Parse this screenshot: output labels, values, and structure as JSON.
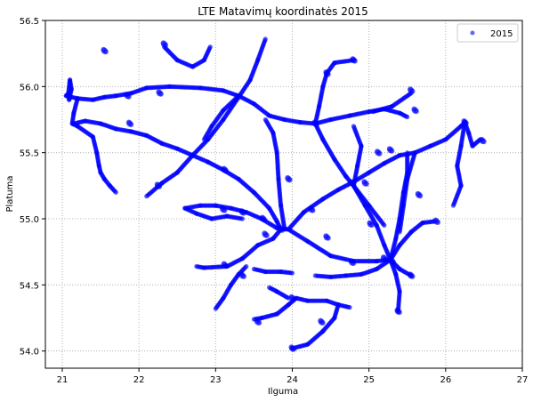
{
  "chart_data": {
    "type": "scatter",
    "title": "LTE Matavimų koordinatės 2015",
    "xlabel": "Ilguma",
    "ylabel": "Platuma",
    "xlim": [
      20.78,
      27.0
    ],
    "ylim": [
      53.87,
      56.5
    ],
    "xticks": [
      "21",
      "22",
      "23",
      "24",
      "25",
      "26",
      "27"
    ],
    "yticks": [
      "54.0",
      "54.5",
      "55.0",
      "55.5",
      "56.0",
      "56.5"
    ],
    "grid": true,
    "legend": "top-right",
    "series": [
      {
        "name": "2015",
        "color": "#0000ff",
        "paths": [
          [
            [
              21.05,
              55.93
            ],
            [
              21.08,
              55.95
            ],
            [
              21.1,
              56.05
            ],
            [
              21.12,
              55.98
            ],
            [
              21.09,
              55.9
            ],
            [
              21.08,
              55.93
            ]
          ],
          [
            [
              21.05,
              55.93
            ],
            [
              21.2,
              55.91
            ],
            [
              21.4,
              55.9
            ],
            [
              21.55,
              55.92
            ],
            [
              21.7,
              55.93
            ],
            [
              21.9,
              55.95
            ],
            [
              22.1,
              55.99
            ],
            [
              22.4,
              56.0
            ],
            [
              22.8,
              55.99
            ],
            [
              23.1,
              55.97
            ],
            [
              23.3,
              55.93
            ],
            [
              23.5,
              55.87
            ]
          ],
          [
            [
              21.2,
              55.91
            ],
            [
              21.15,
              55.8
            ],
            [
              21.13,
              55.72
            ],
            [
              21.2,
              55.7
            ]
          ],
          [
            [
              21.15,
              55.72
            ],
            [
              21.3,
              55.74
            ],
            [
              21.5,
              55.72
            ],
            [
              21.7,
              55.68
            ],
            [
              21.9,
              55.66
            ],
            [
              22.1,
              55.63
            ],
            [
              22.3,
              55.57
            ],
            [
              22.5,
              55.53
            ],
            [
              22.7,
              55.48
            ],
            [
              22.9,
              55.43
            ],
            [
              23.1,
              55.37
            ],
            [
              23.3,
              55.3
            ],
            [
              23.5,
              55.2
            ],
            [
              23.7,
              55.08
            ],
            [
              23.8,
              54.98
            ],
            [
              23.85,
              54.92
            ]
          ],
          [
            [
              21.2,
              55.7
            ],
            [
              21.4,
              55.62
            ],
            [
              21.45,
              55.5
            ],
            [
              21.48,
              55.4
            ],
            [
              21.5,
              55.35
            ]
          ],
          [
            [
              21.5,
              55.35
            ],
            [
              21.55,
              55.3
            ],
            [
              21.62,
              55.25
            ],
            [
              21.7,
              55.2
            ]
          ],
          [
            [
              22.1,
              55.17
            ],
            [
              22.3,
              55.27
            ],
            [
              22.5,
              55.35
            ],
            [
              22.7,
              55.48
            ],
            [
              22.9,
              55.6
            ],
            [
              23.1,
              55.75
            ],
            [
              23.3,
              55.92
            ],
            [
              23.45,
              56.05
            ],
            [
              23.55,
              56.2
            ],
            [
              23.65,
              56.36
            ]
          ],
          [
            [
              23.3,
              55.93
            ],
            [
              23.1,
              55.82
            ],
            [
              22.95,
              55.7
            ],
            [
              22.85,
              55.6
            ]
          ],
          [
            [
              22.33,
              56.3
            ],
            [
              22.5,
              56.2
            ],
            [
              22.7,
              56.15
            ],
            [
              22.85,
              56.2
            ],
            [
              22.93,
              56.3
            ]
          ],
          [
            [
              22.6,
              55.08
            ],
            [
              22.8,
              55.1
            ],
            [
              23.0,
              55.1
            ],
            [
              23.2,
              55.08
            ],
            [
              23.4,
              55.05
            ],
            [
              23.6,
              55.0
            ],
            [
              23.8,
              54.93
            ],
            [
              23.95,
              54.92
            ]
          ],
          [
            [
              22.6,
              55.08
            ],
            [
              22.75,
              55.04
            ],
            [
              22.95,
              55.0
            ],
            [
              23.15,
              55.02
            ],
            [
              23.35,
              55.0
            ]
          ],
          [
            [
              23.85,
              54.92
            ],
            [
              23.75,
              54.85
            ],
            [
              23.55,
              54.8
            ],
            [
              23.35,
              54.7
            ],
            [
              23.15,
              54.64
            ],
            [
              22.85,
              54.63
            ],
            [
              22.75,
              54.64
            ]
          ],
          [
            [
              23.4,
              54.64
            ],
            [
              23.3,
              54.58
            ],
            [
              23.2,
              54.5
            ],
            [
              23.1,
              54.4
            ],
            [
              23.0,
              54.32
            ]
          ],
          [
            [
              23.5,
              54.62
            ],
            [
              23.65,
              54.6
            ],
            [
              23.85,
              54.6
            ],
            [
              24.0,
              54.59
            ]
          ],
          [
            [
              23.95,
              54.92
            ],
            [
              24.2,
              54.83
            ],
            [
              24.5,
              54.72
            ],
            [
              24.8,
              54.68
            ],
            [
              25.1,
              54.68
            ],
            [
              25.28,
              54.69
            ]
          ],
          [
            [
              23.95,
              54.92
            ],
            [
              24.15,
              55.05
            ],
            [
              24.4,
              55.15
            ],
            [
              24.6,
              55.22
            ],
            [
              24.8,
              55.28
            ],
            [
              25.0,
              55.35
            ],
            [
              25.2,
              55.42
            ],
            [
              25.4,
              55.48
            ],
            [
              25.6,
              55.5
            ],
            [
              25.8,
              55.55
            ],
            [
              26.0,
              55.6
            ],
            [
              26.2,
              55.7
            ],
            [
              26.25,
              55.73
            ]
          ],
          [
            [
              23.9,
              54.92
            ],
            [
              23.85,
              55.1
            ],
            [
              23.82,
              55.3
            ],
            [
              23.8,
              55.5
            ],
            [
              23.75,
              55.65
            ],
            [
              23.65,
              55.75
            ]
          ],
          [
            [
              23.5,
              55.87
            ],
            [
              23.7,
              55.78
            ],
            [
              23.9,
              55.75
            ],
            [
              24.1,
              55.73
            ],
            [
              24.3,
              55.72
            ],
            [
              24.5,
              55.75
            ],
            [
              24.75,
              55.78
            ],
            [
              25.0,
              55.81
            ],
            [
              25.2,
              55.83
            ],
            [
              25.4,
              55.8
            ],
            [
              25.5,
              55.77
            ]
          ],
          [
            [
              24.3,
              55.72
            ],
            [
              24.35,
              55.85
            ],
            [
              24.4,
              56.0
            ],
            [
              24.45,
              56.1
            ],
            [
              24.55,
              56.18
            ],
            [
              24.8,
              56.2
            ]
          ],
          [
            [
              24.3,
              55.72
            ],
            [
              24.4,
              55.6
            ],
            [
              24.55,
              55.45
            ],
            [
              24.7,
              55.32
            ],
            [
              24.8,
              55.25
            ],
            [
              24.95,
              55.1
            ],
            [
              25.1,
              54.95
            ],
            [
              25.2,
              54.8
            ],
            [
              25.28,
              54.69
            ]
          ],
          [
            [
              25.05,
              55.81
            ],
            [
              25.3,
              55.85
            ],
            [
              25.55,
              55.95
            ]
          ],
          [
            [
              24.8,
              55.25
            ],
            [
              24.85,
              55.4
            ],
            [
              24.9,
              55.55
            ],
            [
              24.8,
              55.7
            ]
          ],
          [
            [
              25.28,
              54.69
            ],
            [
              25.35,
              54.85
            ],
            [
              25.4,
              55.0
            ],
            [
              25.45,
              55.2
            ],
            [
              25.5,
              55.35
            ],
            [
              25.5,
              55.5
            ]
          ],
          [
            [
              25.28,
              54.69
            ],
            [
              25.4,
              54.8
            ],
            [
              25.55,
              54.9
            ],
            [
              25.7,
              54.97
            ],
            [
              25.85,
              54.98
            ]
          ],
          [
            [
              25.28,
              54.69
            ],
            [
              25.35,
              54.58
            ],
            [
              25.4,
              54.45
            ],
            [
              25.38,
              54.3
            ]
          ],
          [
            [
              25.28,
              54.69
            ],
            [
              25.1,
              54.62
            ],
            [
              24.9,
              54.58
            ],
            [
              24.7,
              54.57
            ],
            [
              24.5,
              54.56
            ],
            [
              24.3,
              54.57
            ]
          ],
          [
            [
              25.28,
              54.69
            ],
            [
              25.4,
              54.62
            ],
            [
              25.55,
              54.57
            ]
          ],
          [
            [
              24.05,
              54.4
            ],
            [
              24.2,
              54.38
            ],
            [
              24.45,
              54.38
            ],
            [
              24.6,
              54.35
            ],
            [
              24.75,
              54.33
            ]
          ],
          [
            [
              24.05,
              54.4
            ],
            [
              23.95,
              54.35
            ],
            [
              23.8,
              54.28
            ],
            [
              23.6,
              54.25
            ],
            [
              23.5,
              54.24
            ]
          ],
          [
            [
              24.6,
              54.35
            ],
            [
              24.55,
              54.25
            ],
            [
              24.4,
              54.15
            ],
            [
              24.2,
              54.05
            ],
            [
              24.0,
              54.02
            ]
          ],
          [
            [
              23.95,
              54.4
            ],
            [
              23.8,
              54.45
            ],
            [
              23.7,
              54.48
            ]
          ],
          [
            [
              26.25,
              55.73
            ],
            [
              26.3,
              55.65
            ],
            [
              26.35,
              55.55
            ],
            [
              26.45,
              55.6
            ]
          ],
          [
            [
              26.25,
              55.73
            ],
            [
              26.2,
              55.55
            ],
            [
              26.15,
              55.4
            ],
            [
              26.2,
              55.25
            ],
            [
              26.1,
              55.1
            ]
          ],
          [
            [
              24.8,
              55.25
            ],
            [
              25.0,
              55.1
            ],
            [
              25.2,
              54.95
            ]
          ],
          [
            [
              25.6,
              55.5
            ],
            [
              25.5,
              55.3
            ],
            [
              25.45,
              55.1
            ],
            [
              25.4,
              54.9
            ]
          ]
        ],
        "clusters": [
          [
            21.55,
            56.27
          ],
          [
            22.33,
            56.32
          ],
          [
            22.27,
            55.95
          ],
          [
            21.85,
            55.93
          ],
          [
            21.88,
            55.72
          ],
          [
            22.25,
            55.25
          ],
          [
            23.12,
            55.37
          ],
          [
            23.35,
            55.05
          ],
          [
            23.62,
            55.0
          ],
          [
            23.95,
            55.3
          ],
          [
            24.25,
            55.07
          ],
          [
            24.45,
            54.86
          ],
          [
            24.78,
            55.27
          ],
          [
            24.95,
            55.27
          ],
          [
            25.12,
            55.5
          ],
          [
            25.28,
            55.52
          ],
          [
            25.55,
            55.97
          ],
          [
            24.8,
            56.2
          ],
          [
            25.65,
            55.18
          ],
          [
            25.6,
            55.82
          ],
          [
            25.88,
            54.98
          ],
          [
            25.38,
            54.3
          ],
          [
            25.3,
            54.68
          ],
          [
            25.2,
            54.7
          ],
          [
            24.38,
            54.22
          ],
          [
            24.0,
            54.02
          ],
          [
            23.55,
            54.22
          ],
          [
            23.35,
            54.57
          ],
          [
            23.12,
            54.65
          ],
          [
            23.1,
            55.07
          ],
          [
            23.65,
            54.88
          ],
          [
            23.85,
            54.92
          ],
          [
            24.0,
            54.4
          ],
          [
            24.78,
            54.67
          ],
          [
            25.02,
            54.96
          ],
          [
            25.55,
            54.57
          ],
          [
            26.48,
            55.59
          ],
          [
            26.25,
            55.73
          ],
          [
            24.3,
            55.72
          ],
          [
            24.45,
            56.1
          ]
        ]
      }
    ]
  }
}
